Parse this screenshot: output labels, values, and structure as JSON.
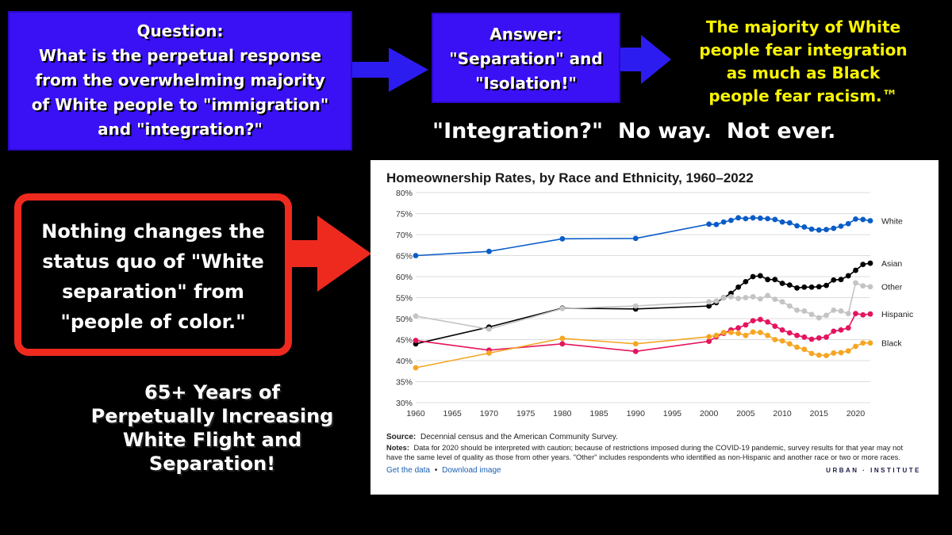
{
  "question_box": {
    "lines": [
      "Question:",
      "What is the perpetual response",
      "from the overwhelming majority",
      "of White people to \"immigration\"",
      "and \"integration?\""
    ]
  },
  "answer_box": {
    "lines": [
      "Answer:",
      "\"Separation\" and",
      "\"Isolation!\""
    ]
  },
  "yellow_text": {
    "lines": [
      "The majority of White",
      "people fear integration",
      "as much as Black",
      "people fear racism.™"
    ]
  },
  "integration_text": "\"Integration?\"  No way.  Not ever.",
  "red_box": {
    "lines": [
      "Nothing changes the",
      "status quo of \"White",
      "separation\" from",
      "\"people of color.\""
    ]
  },
  "bottom_text": {
    "lines": [
      "65+ Years of",
      "Perpetually Increasing",
      "White Flight and",
      "Separation!"
    ]
  },
  "colors": {
    "blue_box": "#3a10f5",
    "arrow_blue": "#2c1cf0",
    "red": "#ee2a1f",
    "yellow": "#f8f400"
  },
  "chart_data": {
    "type": "line",
    "title": "Homeownership Rates, by Race and Ethnicity, 1960–2022",
    "xlabel": "",
    "ylabel": "",
    "xlim": [
      1960,
      2022
    ],
    "ylim": [
      30,
      80
    ],
    "x_ticks": [
      1960,
      1965,
      1970,
      1975,
      1980,
      1985,
      1990,
      1995,
      2000,
      2005,
      2010,
      2015,
      2020
    ],
    "y_ticks": [
      30,
      35,
      40,
      45,
      50,
      55,
      60,
      65,
      70,
      75,
      80
    ],
    "y_tick_labels": [
      "30%",
      "35%",
      "40%",
      "45%",
      "50%",
      "55%",
      "60%",
      "65%",
      "70%",
      "75%",
      "80%"
    ],
    "grid": "horizontal",
    "legend": "direct labels at right end of lines",
    "series": [
      {
        "name": "White",
        "color": "#0a5cc7",
        "points": [
          [
            1960,
            65.0
          ],
          [
            1970,
            66.0
          ],
          [
            1980,
            69.0
          ],
          [
            1990,
            69.1
          ],
          [
            2000,
            72.5
          ],
          [
            2001,
            72.4
          ],
          [
            2002,
            73.0
          ],
          [
            2003,
            73.4
          ],
          [
            2004,
            74.0
          ],
          [
            2005,
            73.8
          ],
          [
            2006,
            74.0
          ],
          [
            2007,
            73.9
          ],
          [
            2008,
            73.8
          ],
          [
            2009,
            73.6
          ],
          [
            2010,
            73.0
          ],
          [
            2011,
            72.8
          ],
          [
            2012,
            72.1
          ],
          [
            2013,
            71.8
          ],
          [
            2014,
            71.3
          ],
          [
            2015,
            71.1
          ],
          [
            2016,
            71.2
          ],
          [
            2017,
            71.5
          ],
          [
            2018,
            72.0
          ],
          [
            2019,
            72.6
          ],
          [
            2020,
            73.7
          ],
          [
            2021,
            73.6
          ],
          [
            2022,
            73.3
          ]
        ]
      },
      {
        "name": "Asian",
        "color": "#000000",
        "points": [
          [
            1960,
            44.0
          ],
          [
            1970,
            48.0
          ],
          [
            1980,
            52.5
          ],
          [
            1990,
            52.3
          ],
          [
            2000,
            53.0
          ],
          [
            2001,
            53.8
          ],
          [
            2002,
            55.0
          ],
          [
            2003,
            56.0
          ],
          [
            2004,
            57.5
          ],
          [
            2005,
            58.8
          ],
          [
            2006,
            60.0
          ],
          [
            2007,
            60.2
          ],
          [
            2008,
            59.3
          ],
          [
            2009,
            59.3
          ],
          [
            2010,
            58.4
          ],
          [
            2011,
            58.0
          ],
          [
            2012,
            57.3
          ],
          [
            2013,
            57.5
          ],
          [
            2014,
            57.5
          ],
          [
            2015,
            57.6
          ],
          [
            2016,
            57.9
          ],
          [
            2017,
            59.2
          ],
          [
            2018,
            59.3
          ],
          [
            2019,
            60.2
          ],
          [
            2020,
            61.5
          ],
          [
            2021,
            62.9
          ],
          [
            2022,
            63.2
          ]
        ]
      },
      {
        "name": "Other",
        "color": "#c4c4c4",
        "points": [
          [
            1960,
            50.6
          ],
          [
            1970,
            47.5
          ],
          [
            1980,
            52.4
          ],
          [
            1990,
            53.0
          ],
          [
            2000,
            54.0
          ],
          [
            2001,
            54.2
          ],
          [
            2002,
            55.0
          ],
          [
            2003,
            55.2
          ],
          [
            2004,
            54.8
          ],
          [
            2005,
            55.0
          ],
          [
            2006,
            55.2
          ],
          [
            2007,
            54.7
          ],
          [
            2008,
            55.5
          ],
          [
            2009,
            54.6
          ],
          [
            2010,
            54.0
          ],
          [
            2011,
            53.0
          ],
          [
            2012,
            52.0
          ],
          [
            2013,
            51.8
          ],
          [
            2014,
            51.0
          ],
          [
            2015,
            50.2
          ],
          [
            2016,
            50.8
          ],
          [
            2017,
            52.0
          ],
          [
            2018,
            51.8
          ],
          [
            2019,
            51.2
          ],
          [
            2020,
            58.5
          ],
          [
            2021,
            57.8
          ],
          [
            2022,
            57.6
          ]
        ]
      },
      {
        "name": "Hispanic",
        "color": "#e5145f",
        "points": [
          [
            1960,
            44.8
          ],
          [
            1970,
            42.5
          ],
          [
            1980,
            44.0
          ],
          [
            1990,
            42.2
          ],
          [
            2000,
            44.6
          ],
          [
            2001,
            45.7
          ],
          [
            2002,
            46.5
          ],
          [
            2003,
            47.3
          ],
          [
            2004,
            47.8
          ],
          [
            2005,
            48.5
          ],
          [
            2006,
            49.5
          ],
          [
            2007,
            49.8
          ],
          [
            2008,
            49.2
          ],
          [
            2009,
            48.2
          ],
          [
            2010,
            47.3
          ],
          [
            2011,
            46.6
          ],
          [
            2012,
            46.0
          ],
          [
            2013,
            45.6
          ],
          [
            2014,
            45.1
          ],
          [
            2015,
            45.4
          ],
          [
            2016,
            45.6
          ],
          [
            2017,
            47.0
          ],
          [
            2018,
            47.3
          ],
          [
            2019,
            47.8
          ],
          [
            2020,
            51.2
          ],
          [
            2021,
            50.9
          ],
          [
            2022,
            51.1
          ]
        ]
      },
      {
        "name": "Black",
        "color": "#f5a623",
        "points": [
          [
            1960,
            38.3
          ],
          [
            1970,
            41.8
          ],
          [
            1980,
            45.3
          ],
          [
            1990,
            44.0
          ],
          [
            2000,
            45.7
          ],
          [
            2001,
            46.0
          ],
          [
            2002,
            46.7
          ],
          [
            2003,
            46.7
          ],
          [
            2004,
            46.5
          ],
          [
            2005,
            46.0
          ],
          [
            2006,
            46.8
          ],
          [
            2007,
            46.7
          ],
          [
            2008,
            46.0
          ],
          [
            2009,
            45.0
          ],
          [
            2010,
            44.7
          ],
          [
            2011,
            44.0
          ],
          [
            2012,
            43.2
          ],
          [
            2013,
            42.7
          ],
          [
            2014,
            41.7
          ],
          [
            2015,
            41.3
          ],
          [
            2016,
            41.2
          ],
          [
            2017,
            41.8
          ],
          [
            2018,
            41.9
          ],
          [
            2019,
            42.3
          ],
          [
            2020,
            43.4
          ],
          [
            2021,
            44.2
          ],
          [
            2022,
            44.2
          ]
        ]
      }
    ],
    "source_label": "Source:",
    "source": "Decennial census and the American Community Survey.",
    "notes_label": "Notes:",
    "notes_line1": "Data for 2020 should be interpreted with caution; because of restrictions imposed during the COVID-19 pandemic, survey results for that year may not",
    "notes_line2": "have the same level of quality as those from other years. \"Other\" includes respondents who identified as non-Hispanic and another race or two or more races.",
    "get_data_link": "Get the data",
    "separator": "•",
    "download_link": "Download image",
    "brand": "URBAN · INSTITUTE"
  }
}
